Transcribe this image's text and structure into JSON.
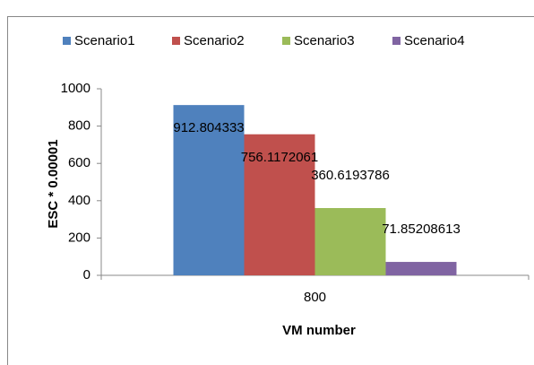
{
  "chart_data": {
    "type": "bar",
    "categories": [
      "800"
    ],
    "series": [
      {
        "name": "Scenario1",
        "color": "#4f81bd",
        "values": [
          912.804333
        ]
      },
      {
        "name": "Scenario2",
        "color": "#c0504d",
        "values": [
          756.1172061
        ]
      },
      {
        "name": "Scenario3",
        "color": "#9bbb59",
        "values": [
          360.6193786
        ]
      },
      {
        "name": "Scenario4",
        "color": "#8064a2",
        "values": [
          71.85208613
        ]
      }
    ],
    "ylabel": "ESC * 0.00001",
    "xlabel": "VM number",
    "ylim": [
      0,
      1000
    ],
    "yticks": [
      0,
      200,
      400,
      600,
      800,
      1000
    ],
    "grid": false,
    "legend": "top"
  }
}
